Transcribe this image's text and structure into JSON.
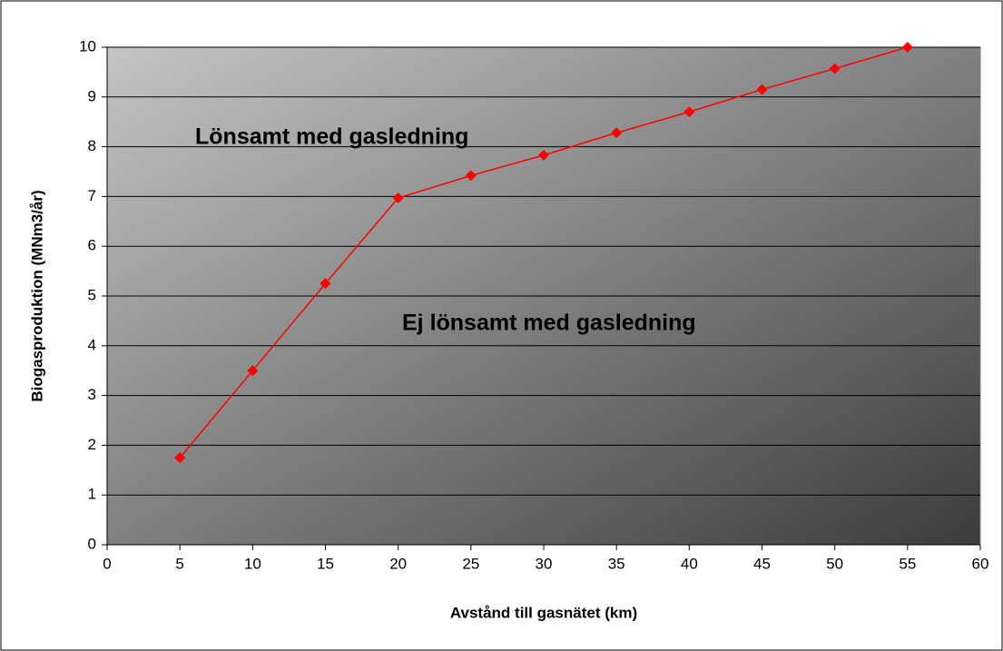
{
  "chart_data": {
    "type": "line",
    "x_label": "Avstånd till gasnätet (km)",
    "y_label": "Biogasproduktion (MNm3/år)",
    "annotations": [
      "Lönsamt med gasledning",
      "Ej lönsamt med gasledning"
    ],
    "x": [
      5,
      10,
      15,
      20,
      25,
      30,
      35,
      40,
      45,
      50,
      55
    ],
    "series": [
      {
        "name": "Biogasproduktion",
        "color": "#ff0000",
        "values": [
          1.75,
          3.5,
          5.25,
          6.97,
          7.42,
          7.83,
          8.28,
          8.7,
          9.15,
          9.57,
          10.0
        ]
      }
    ],
    "xlim": [
      0,
      60
    ],
    "xticks": [
      0,
      5,
      10,
      15,
      20,
      25,
      30,
      35,
      40,
      45,
      50,
      55,
      60
    ],
    "ylim": [
      0,
      10
    ],
    "yticks": [
      0,
      1,
      2,
      3,
      4,
      5,
      6,
      7,
      8,
      9,
      10
    ],
    "grid": true
  }
}
